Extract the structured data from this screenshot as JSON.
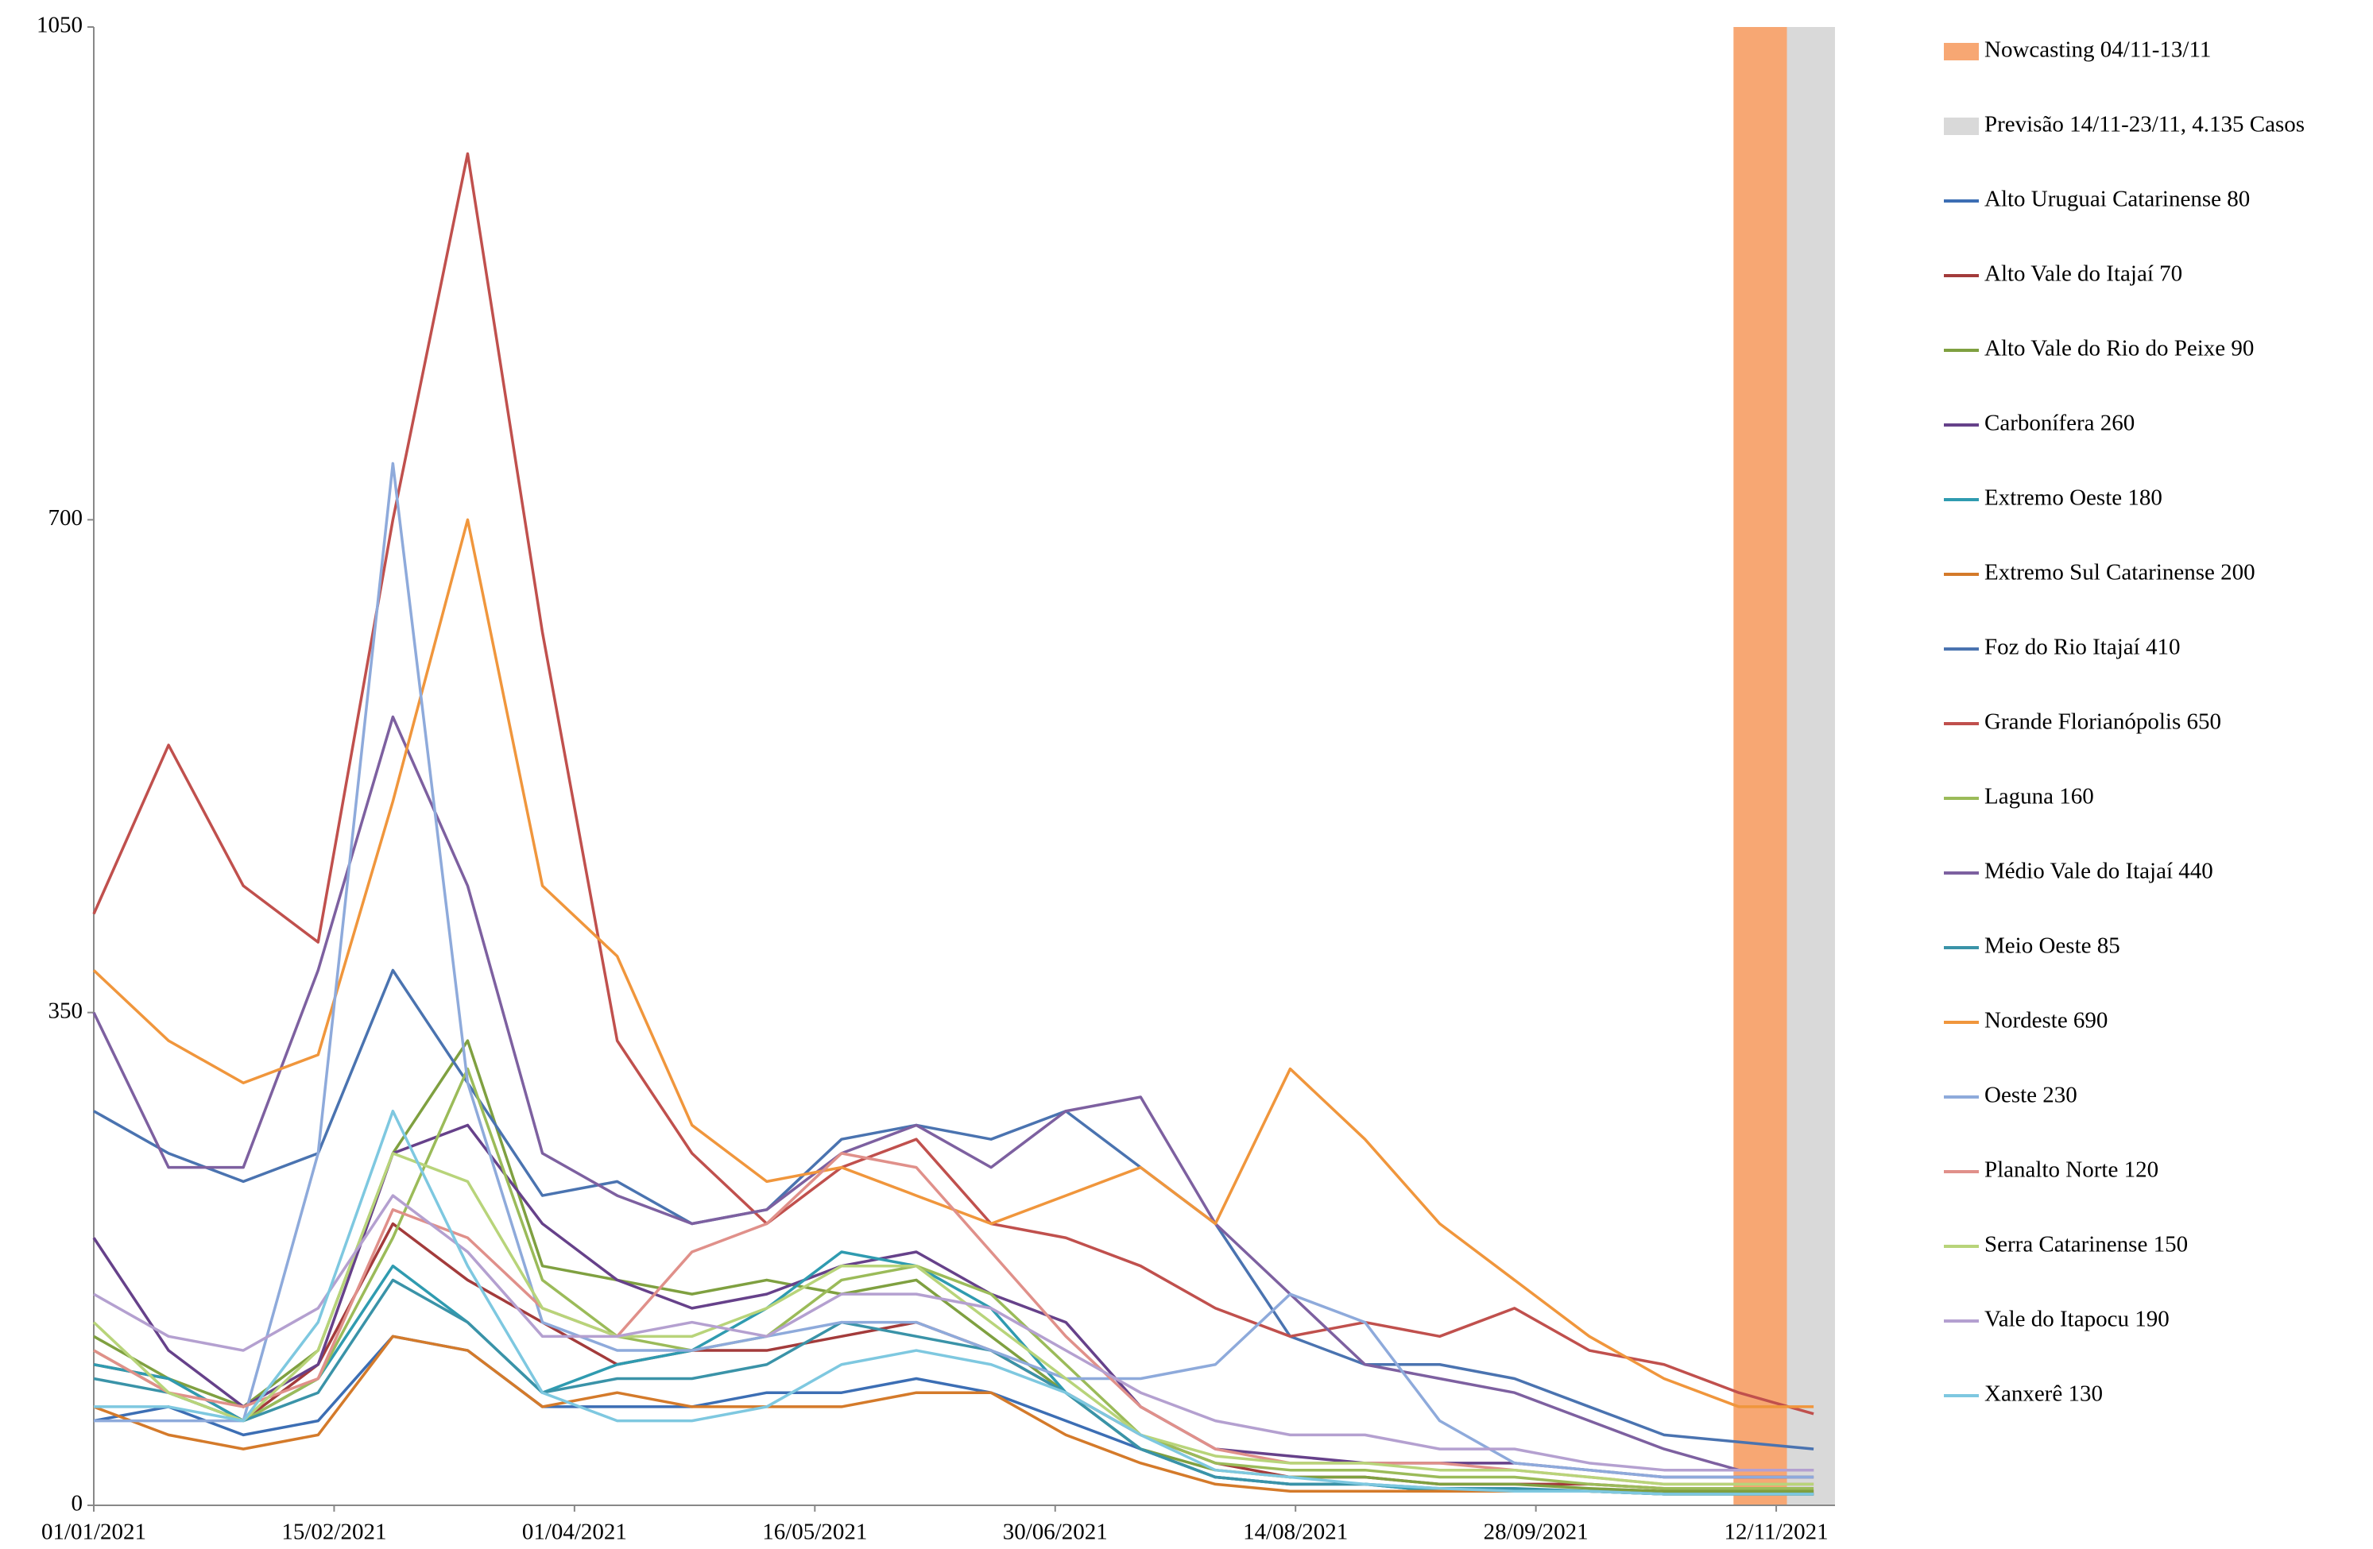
{
  "chart_data": {
    "type": "line",
    "x": [
      "01/01/2021",
      "15/01/2021",
      "29/01/2021",
      "12/02/2021",
      "26/02/2021",
      "12/03/2021",
      "26/03/2021",
      "09/04/2021",
      "23/04/2021",
      "07/05/2021",
      "21/05/2021",
      "04/06/2021",
      "18/06/2021",
      "02/07/2021",
      "16/07/2021",
      "30/07/2021",
      "13/08/2021",
      "27/08/2021",
      "10/09/2021",
      "24/09/2021",
      "08/10/2021",
      "22/10/2021",
      "05/11/2021",
      "19/11/2021"
    ],
    "xlim": [
      "01/01/2021",
      "23/11/2021"
    ],
    "xticks": [
      "01/01/2021",
      "15/02/2021",
      "01/04/2021",
      "16/05/2021",
      "30/06/2021",
      "14/08/2021",
      "28/09/2021",
      "12/11/2021"
    ],
    "ylim": [
      0,
      1050
    ],
    "yticks": [
      0,
      350,
      700,
      1050
    ],
    "bands": [
      {
        "name": "Nowcasting 04/11-13/11",
        "color": "#f7a773",
        "x": [
          "04/11/2021",
          "13/11/2021"
        ]
      },
      {
        "name": "Previsão 14/11-23/11, 4.135 Casos",
        "color": "#d9d9d9",
        "x": [
          "14/11/2021",
          "23/11/2021"
        ]
      }
    ],
    "series": [
      {
        "name": "Alto Uruguai Catarinense 80",
        "color": "#3c6eb4",
        "values": [
          60,
          70,
          50,
          60,
          120,
          110,
          70,
          70,
          70,
          80,
          80,
          90,
          80,
          60,
          40,
          20,
          15,
          15,
          10,
          10,
          10,
          8,
          8,
          8
        ]
      },
      {
        "name": "Alto Vale do Itajaí 70",
        "color": "#a33b3b",
        "values": [
          100,
          90,
          60,
          100,
          200,
          160,
          130,
          100,
          110,
          110,
          120,
          130,
          110,
          80,
          50,
          30,
          20,
          20,
          15,
          15,
          15,
          12,
          10,
          10
        ]
      },
      {
        "name": "Alto Vale do Rio do Peixe 90",
        "color": "#7fa040",
        "values": [
          120,
          90,
          70,
          110,
          250,
          330,
          170,
          160,
          150,
          160,
          150,
          160,
          120,
          80,
          40,
          25,
          20,
          20,
          15,
          15,
          12,
          10,
          10,
          10
        ]
      },
      {
        "name": "Carbonífera 260",
        "color": "#66418a",
        "values": [
          190,
          110,
          70,
          100,
          250,
          270,
          200,
          160,
          140,
          150,
          170,
          180,
          150,
          130,
          70,
          40,
          35,
          30,
          30,
          30,
          25,
          20,
          20,
          20
        ]
      },
      {
        "name": "Extremo Oeste 180",
        "color": "#2f9bb0",
        "values": [
          100,
          90,
          60,
          90,
          170,
          130,
          80,
          100,
          110,
          140,
          180,
          170,
          140,
          80,
          40,
          20,
          15,
          15,
          10,
          10,
          10,
          8,
          8,
          8
        ]
      },
      {
        "name": "Extremo Sul Catarinense 200",
        "color": "#d47a2a",
        "values": [
          70,
          50,
          40,
          50,
          120,
          110,
          70,
          80,
          70,
          70,
          70,
          80,
          80,
          50,
          30,
          15,
          10,
          10,
          10,
          10,
          10,
          8,
          8,
          8
        ]
      },
      {
        "name": "Foz do Rio Itajaí 410",
        "color": "#4a73b0",
        "values": [
          280,
          250,
          230,
          250,
          380,
          300,
          220,
          230,
          200,
          210,
          260,
          270,
          260,
          280,
          240,
          200,
          120,
          100,
          100,
          90,
          70,
          50,
          45,
          40
        ]
      },
      {
        "name": "Grande Florianópolis 650",
        "color": "#c0504d",
        "values": [
          420,
          540,
          440,
          400,
          700,
          960,
          620,
          330,
          250,
          200,
          240,
          260,
          200,
          190,
          170,
          140,
          120,
          130,
          120,
          140,
          110,
          100,
          80,
          65
        ]
      },
      {
        "name": "Laguna 160",
        "color": "#9bbb59",
        "values": [
          110,
          80,
          60,
          90,
          190,
          310,
          160,
          120,
          110,
          120,
          160,
          170,
          150,
          100,
          50,
          30,
          25,
          25,
          20,
          20,
          15,
          12,
          12,
          12
        ]
      },
      {
        "name": "Médio Vale do Itajaí 440",
        "color": "#7d60a0",
        "values": [
          350,
          240,
          240,
          380,
          560,
          440,
          250,
          220,
          200,
          210,
          250,
          270,
          240,
          280,
          290,
          200,
          150,
          100,
          90,
          80,
          60,
          40,
          25,
          25
        ]
      },
      {
        "name": "Meio Oeste 85",
        "color": "#3a93a8",
        "values": [
          90,
          80,
          60,
          80,
          160,
          130,
          80,
          90,
          90,
          100,
          130,
          120,
          110,
          80,
          40,
          20,
          15,
          15,
          12,
          12,
          10,
          8,
          8,
          8
        ]
      },
      {
        "name": "Nordeste 690",
        "color": "#f0963c",
        "values": [
          380,
          330,
          300,
          320,
          500,
          700,
          440,
          390,
          270,
          230,
          240,
          220,
          200,
          220,
          240,
          200,
          310,
          260,
          200,
          160,
          120,
          90,
          70,
          70
        ]
      },
      {
        "name": "Oeste 230",
        "color": "#8eaadb",
        "values": [
          60,
          60,
          60,
          250,
          740,
          300,
          130,
          110,
          110,
          120,
          130,
          130,
          110,
          90,
          90,
          100,
          150,
          130,
          60,
          30,
          25,
          20,
          20,
          20
        ]
      },
      {
        "name": "Planalto Norte 120",
        "color": "#e0908a",
        "values": [
          110,
          80,
          70,
          90,
          210,
          190,
          140,
          120,
          180,
          200,
          250,
          240,
          180,
          120,
          70,
          40,
          30,
          30,
          30,
          25,
          20,
          15,
          15,
          15
        ]
      },
      {
        "name": "Serra Catarinense 150",
        "color": "#b8d47a",
        "values": [
          130,
          80,
          60,
          110,
          250,
          230,
          140,
          120,
          120,
          140,
          170,
          170,
          130,
          90,
          50,
          35,
          30,
          30,
          25,
          25,
          20,
          15,
          15,
          15
        ]
      },
      {
        "name": "Vale do Itapocu 190",
        "color": "#b4a0d0",
        "values": [
          150,
          120,
          110,
          140,
          220,
          180,
          120,
          120,
          130,
          120,
          150,
          150,
          140,
          110,
          80,
          60,
          50,
          50,
          40,
          40,
          30,
          25,
          25,
          25
        ]
      },
      {
        "name": "Xanxerê 130",
        "color": "#7ec8e0",
        "values": [
          70,
          70,
          60,
          130,
          280,
          170,
          80,
          60,
          60,
          70,
          100,
          110,
          100,
          80,
          50,
          25,
          20,
          15,
          12,
          10,
          10,
          8,
          8,
          8
        ]
      }
    ]
  }
}
